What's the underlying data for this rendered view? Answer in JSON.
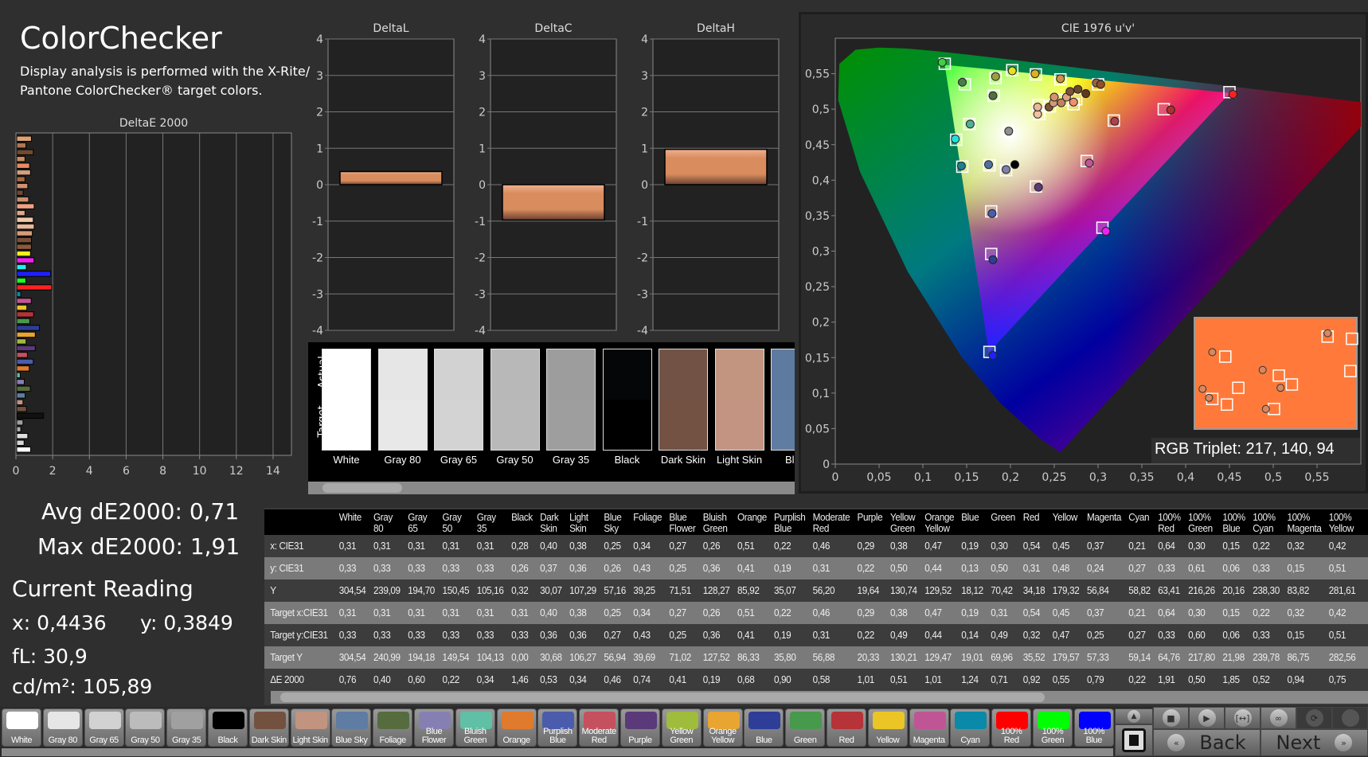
{
  "header": {
    "title": "ColorChecker",
    "description_line1": "Display analysis is performed with the X-Rite/",
    "description_line2": "Pantone ColorChecker® target colors."
  },
  "stats": {
    "avg": "Avg dE2000: 0,71",
    "max": "Max dE2000: 1,91",
    "current_reading": "Current Reading",
    "x": "x: 0,4436",
    "y": "y: 0,3849",
    "fl": "fL: 30,9",
    "cdm2": "cd/m²: 105,89"
  },
  "chart_data": [
    {
      "type": "bar",
      "orientation": "horizontal",
      "title": "DeltaE 2000",
      "xlim": [
        0,
        15
      ],
      "xticks": [
        "0",
        "2",
        "4",
        "6",
        "8",
        "10",
        "12",
        "14"
      ],
      "grid": true,
      "values": [
        0.76,
        0.4,
        0.6,
        0.22,
        0.34,
        1.46,
        0.53,
        0.34,
        0.46,
        0.74,
        0.41,
        0.19,
        0.68,
        0.9,
        0.58,
        1.01,
        0.51,
        1.01,
        1.24,
        0.71,
        0.92,
        0.55,
        0.79,
        0.22,
        1.91,
        0.5,
        1.85,
        0.52,
        0.94,
        0.75,
        0.8,
        0.8,
        0.85,
        0.95,
        0.9,
        0.45,
        0.95,
        0.65,
        0.35,
        0.6,
        0.45,
        0.75,
        0.7,
        0.45,
        0.9,
        0.5,
        0.8
      ],
      "colors": [
        "#ffffff",
        "#d8d8d8",
        "#e0e0e0",
        "#b0b0b0",
        "#a0a0a0",
        "#111111",
        "#73513f",
        "#c2947f",
        "#5f7ca3",
        "#566c3f",
        "#8680b2",
        "#60c0a6",
        "#e07a2c",
        "#4a5cab",
        "#c5515f",
        "#5a3a78",
        "#9fbc3d",
        "#e8a531",
        "#2d3d98",
        "#47994b",
        "#b63339",
        "#ebc526",
        "#c05596",
        "#0a89a8",
        "#ff2020",
        "#20ff20",
        "#2020ff",
        "#20f0f0",
        "#f020f0",
        "#f0f020",
        "#8a5a3a",
        "#7a5038",
        "#d89a78",
        "#e8b898",
        "#f0c8a8",
        "#e0a888",
        "#f0a080",
        "#c89070",
        "#704830",
        "#d09070",
        "#a86a40",
        "#d0a080",
        "#e88a60",
        "#d08a60",
        "#704a30",
        "#b07850",
        "#e0a070"
      ]
    },
    {
      "type": "bar",
      "title": "DeltaL",
      "ylim": [
        -4,
        4
      ],
      "yticks": [
        "4",
        "3",
        "2",
        "1",
        "0",
        "-1",
        "-2",
        "-3",
        "-4"
      ],
      "value": 0.36,
      "color": "#d98c5e"
    },
    {
      "type": "bar",
      "title": "DeltaC",
      "ylim": [
        -4,
        4
      ],
      "yticks": [
        "4",
        "3",
        "2",
        "1",
        "0",
        "-1",
        "-2",
        "-3",
        "-4"
      ],
      "value": -0.97,
      "color": "#d98c5e"
    },
    {
      "type": "bar",
      "title": "DeltaH",
      "ylim": [
        -4,
        4
      ],
      "yticks": [
        "4",
        "3",
        "2",
        "1",
        "0",
        "-1",
        "-2",
        "-3",
        "-4"
      ],
      "value": 0.97,
      "color": "#d98c5e"
    },
    {
      "type": "scatter",
      "title": "CIE 1976 u'v'",
      "xlim": [
        0,
        0.6
      ],
      "ylim": [
        0,
        0.6
      ],
      "xticks": [
        "0",
        "0,05",
        "0,1",
        "0,15",
        "0,2",
        "0,25",
        "0,3",
        "0,35",
        "0,4",
        "0,45",
        "0,5",
        "0,55"
      ],
      "yticks": [
        "0",
        "0,05",
        "0,1",
        "0,15",
        "0,2",
        "0,25",
        "0,3",
        "0,35",
        "0,4",
        "0,45",
        "0,5",
        "0,55"
      ],
      "gamut": {
        "red": [
          0.4507,
          0.5229
        ],
        "green": [
          0.125,
          0.5625
        ],
        "blue": [
          0.1754,
          0.1579
        ],
        "white": [
          0.1978,
          0.4683
        ]
      },
      "targets": [
        [
          0.125,
          0.564
        ],
        [
          0.148,
          0.535
        ],
        [
          0.183,
          0.544
        ],
        [
          0.202,
          0.555
        ],
        [
          0.229,
          0.549
        ],
        [
          0.257,
          0.542
        ],
        [
          0.3,
          0.535
        ],
        [
          0.181,
          0.519
        ],
        [
          0.153,
          0.479
        ],
        [
          0.138,
          0.457
        ],
        [
          0.145,
          0.419
        ],
        [
          0.176,
          0.421
        ],
        [
          0.195,
          0.414
        ],
        [
          0.198,
          0.469
        ],
        [
          0.229,
          0.391
        ],
        [
          0.287,
          0.427
        ],
        [
          0.318,
          0.484
        ],
        [
          0.375,
          0.5
        ],
        [
          0.45,
          0.524
        ],
        [
          0.178,
          0.356
        ],
        [
          0.178,
          0.296
        ],
        [
          0.176,
          0.158
        ],
        [
          0.305,
          0.333
        ],
        [
          0.233,
          0.493
        ],
        [
          0.245,
          0.504
        ],
        [
          0.26,
          0.513
        ],
        [
          0.275,
          0.514
        ],
        [
          0.272,
          0.507
        ],
        [
          0.232,
          0.506
        ]
      ],
      "actuals": [
        [
          0.122,
          0.566,
          "#40d040"
        ],
        [
          0.145,
          0.538,
          "#4a7a4a"
        ],
        [
          0.183,
          0.546,
          "#9aa040"
        ],
        [
          0.202,
          0.554,
          "#e8e020"
        ],
        [
          0.228,
          0.55,
          "#e0b020"
        ],
        [
          0.257,
          0.543,
          "#d09050"
        ],
        [
          0.298,
          0.537,
          "#a06040"
        ],
        [
          0.303,
          0.535,
          "#905030"
        ],
        [
          0.18,
          0.519,
          "#507040"
        ],
        [
          0.154,
          0.479,
          "#50b090"
        ],
        [
          0.137,
          0.458,
          "#20e0e0"
        ],
        [
          0.144,
          0.42,
          "#208090"
        ],
        [
          0.175,
          0.422,
          "#5070a0"
        ],
        [
          0.195,
          0.415,
          "#8080b0"
        ],
        [
          0.205,
          0.422,
          "#000000"
        ],
        [
          0.198,
          0.469,
          "#909090"
        ],
        [
          0.232,
          0.39,
          "#5a3a78"
        ],
        [
          0.29,
          0.424,
          "#c05596"
        ],
        [
          0.319,
          0.483,
          "#b04050"
        ],
        [
          0.383,
          0.499,
          "#b03030"
        ],
        [
          0.454,
          0.521,
          "#ff2020"
        ],
        [
          0.179,
          0.353,
          "#4a5cab"
        ],
        [
          0.18,
          0.288,
          "#2d3d98"
        ],
        [
          0.18,
          0.153,
          "#2020ff"
        ],
        [
          0.309,
          0.328,
          "#f020f0"
        ],
        [
          0.231,
          0.493,
          "#f0c0a0"
        ],
        [
          0.231,
          0.503,
          "#e8b898"
        ],
        [
          0.244,
          0.503,
          "#805030"
        ],
        [
          0.249,
          0.509,
          "#d09a78"
        ],
        [
          0.25,
          0.517,
          "#d89070"
        ],
        [
          0.258,
          0.509,
          "#c08060"
        ],
        [
          0.264,
          0.517,
          "#e0a080"
        ],
        [
          0.268,
          0.525,
          "#805038"
        ],
        [
          0.272,
          0.51,
          "#f09070"
        ],
        [
          0.277,
          0.528,
          "#704830"
        ],
        [
          0.286,
          0.522,
          "#603820"
        ]
      ],
      "inset_color": "#ff7a3a"
    }
  ],
  "cie_readout": "RGB Triplet: 217, 140, 94",
  "strip": {
    "actual_label": "Actual",
    "target_label": "Target",
    "swatches": [
      {
        "label": "White",
        "actual": "#ffffff",
        "target": "#ffffff"
      },
      {
        "label": "Gray 80",
        "actual": "#e6e6e6",
        "target": "#e8e8e8"
      },
      {
        "label": "Gray 65",
        "actual": "#d2d2d2",
        "target": "#d3d3d3"
      },
      {
        "label": "Gray 50",
        "actual": "#b8b8b8",
        "target": "#b9b9b9"
      },
      {
        "label": "Gray 35",
        "actual": "#9d9d9d",
        "target": "#9e9e9e"
      },
      {
        "label": "Black",
        "actual": "#050608",
        "target": "#000000"
      },
      {
        "label": "Dark Skin",
        "actual": "#725244",
        "target": "#735243"
      },
      {
        "label": "Light Skin",
        "actual": "#c29580",
        "target": "#c39482"
      },
      {
        "label": "Blue",
        "actual": "#5d7aa0",
        "target": "#5f7ca3"
      }
    ]
  },
  "table": {
    "columns": [
      "White",
      "Gray 80",
      "Gray 65",
      "Gray 50",
      "Gray 35",
      "Black",
      "Dark Skin",
      "Light Skin",
      "Blue Sky",
      "Foliage",
      "Blue Flower",
      "Bluish Green",
      "Orange",
      "Purplish Blue",
      "Moderate Red",
      "Purple",
      "Yellow Green",
      "Orange Yellow",
      "Blue",
      "Green",
      "Red",
      "Yellow",
      "Magenta",
      "Cyan",
      "100% Red",
      "100% Green",
      "100% Blue",
      "100% Cyan",
      "100% Magenta",
      "100% Yellow"
    ],
    "rows": [
      {
        "label": "x: CIE31",
        "values": [
          "0,31",
          "0,31",
          "0,31",
          "0,31",
          "0,31",
          "0,28",
          "0,40",
          "0,38",
          "0,25",
          "0,34",
          "0,27",
          "0,26",
          "0,51",
          "0,22",
          "0,46",
          "0,29",
          "0,38",
          "0,47",
          "0,19",
          "0,30",
          "0,54",
          "0,45",
          "0,37",
          "0,21",
          "0,64",
          "0,30",
          "0,15",
          "0,22",
          "0,32",
          "0,42"
        ]
      },
      {
        "label": "y: CIE31",
        "values": [
          "0,33",
          "0,33",
          "0,33",
          "0,33",
          "0,33",
          "0,26",
          "0,37",
          "0,36",
          "0,26",
          "0,43",
          "0,25",
          "0,36",
          "0,41",
          "0,19",
          "0,31",
          "0,22",
          "0,50",
          "0,44",
          "0,13",
          "0,50",
          "0,31",
          "0,48",
          "0,24",
          "0,27",
          "0,33",
          "0,61",
          "0,06",
          "0,33",
          "0,15",
          "0,51"
        ]
      },
      {
        "label": "Y",
        "values": [
          "304,54",
          "239,09",
          "194,70",
          "150,45",
          "105,16",
          "0,32",
          "30,07",
          "107,29",
          "57,16",
          "39,25",
          "71,51",
          "128,27",
          "85,92",
          "35,07",
          "56,20",
          "19,64",
          "130,74",
          "129,52",
          "18,12",
          "70,42",
          "34,18",
          "179,32",
          "56,84",
          "58,82",
          "63,41",
          "216,26",
          "20,16",
          "238,30",
          "83,82",
          "281,61"
        ]
      },
      {
        "label": "Target x:CIE31",
        "values": [
          "0,31",
          "0,31",
          "0,31",
          "0,31",
          "0,31",
          "0,31",
          "0,40",
          "0,38",
          "0,25",
          "0,34",
          "0,27",
          "0,26",
          "0,51",
          "0,22",
          "0,46",
          "0,29",
          "0,38",
          "0,47",
          "0,19",
          "0,31",
          "0,54",
          "0,45",
          "0,37",
          "0,21",
          "0,64",
          "0,30",
          "0,15",
          "0,22",
          "0,32",
          "0,42"
        ]
      },
      {
        "label": "Target y:CIE31",
        "values": [
          "0,33",
          "0,33",
          "0,33",
          "0,33",
          "0,33",
          "0,33",
          "0,36",
          "0,36",
          "0,27",
          "0,43",
          "0,25",
          "0,36",
          "0,41",
          "0,19",
          "0,31",
          "0,22",
          "0,49",
          "0,44",
          "0,14",
          "0,49",
          "0,32",
          "0,47",
          "0,25",
          "0,27",
          "0,33",
          "0,60",
          "0,06",
          "0,33",
          "0,15",
          "0,51"
        ]
      },
      {
        "label": "Target Y",
        "values": [
          "304,54",
          "240,99",
          "194,18",
          "149,54",
          "104,13",
          "0,00",
          "30,68",
          "106,27",
          "56,94",
          "39,69",
          "71,02",
          "127,52",
          "86,33",
          "35,80",
          "56,88",
          "20,33",
          "130,21",
          "129,47",
          "19,01",
          "69,96",
          "35,52",
          "179,57",
          "57,33",
          "59,14",
          "64,76",
          "217,80",
          "21,98",
          "239,78",
          "86,75",
          "282,56"
        ]
      },
      {
        "label": "ΔE 2000",
        "values": [
          "0,76",
          "0,40",
          "0,60",
          "0,22",
          "0,34",
          "1,46",
          "0,53",
          "0,34",
          "0,46",
          "0,74",
          "0,41",
          "0,19",
          "0,68",
          "0,90",
          "0,58",
          "1,01",
          "0,51",
          "1,01",
          "1,24",
          "0,71",
          "0,92",
          "0,55",
          "0,79",
          "0,22",
          "1,91",
          "0,50",
          "1,85",
          "0,52",
          "0,94",
          "0,75"
        ]
      }
    ]
  },
  "patches": [
    {
      "label": "White",
      "color": "#ffffff"
    },
    {
      "label": "Gray 80",
      "color": "#e6e6e6"
    },
    {
      "label": "Gray 65",
      "color": "#d2d2d2"
    },
    {
      "label": "Gray 50",
      "color": "#bcbcbc"
    },
    {
      "label": "Gray 35",
      "color": "#a0a0a0"
    },
    {
      "label": "Black",
      "color": "#000000"
    },
    {
      "label": "Dark Skin",
      "color": "#73513f"
    },
    {
      "label": "Light Skin",
      "color": "#c2947f"
    },
    {
      "label": "Blue Sky",
      "color": "#5f7ca3"
    },
    {
      "label": "Foliage",
      "color": "#566c3f"
    },
    {
      "label": "Blue\nFlower",
      "color": "#8680b2"
    },
    {
      "label": "Bluish\nGreen",
      "color": "#60c0a6"
    },
    {
      "label": "Orange",
      "color": "#e07a2c"
    },
    {
      "label": "Purplish\nBlue",
      "color": "#4a5cab"
    },
    {
      "label": "Moderate\nRed",
      "color": "#c5515f"
    },
    {
      "label": "Purple",
      "color": "#5a3a78"
    },
    {
      "label": "Yellow\nGreen",
      "color": "#9fbc3d"
    },
    {
      "label": "Orange\nYellow",
      "color": "#e8a531"
    },
    {
      "label": "Blue",
      "color": "#2d3d98"
    },
    {
      "label": "Green",
      "color": "#47994b"
    },
    {
      "label": "Red",
      "color": "#b63339"
    },
    {
      "label": "Yellow",
      "color": "#ebc526"
    },
    {
      "label": "Magenta",
      "color": "#c05596"
    },
    {
      "label": "Cyan",
      "color": "#0a89a8"
    },
    {
      "label": "100% Red",
      "color": "#ff0000"
    },
    {
      "label": "100%\nGreen",
      "color": "#00ff00"
    },
    {
      "label": "100%\nBlue",
      "color": "#0000ff"
    }
  ],
  "controls": {
    "back": "Back",
    "next": "Next",
    "back_icon": "«",
    "next_icon": "»",
    "icons": [
      "stop-icon",
      "play-icon",
      "fit-icon",
      "loop-icon",
      "refresh-icon",
      "record-icon"
    ]
  }
}
